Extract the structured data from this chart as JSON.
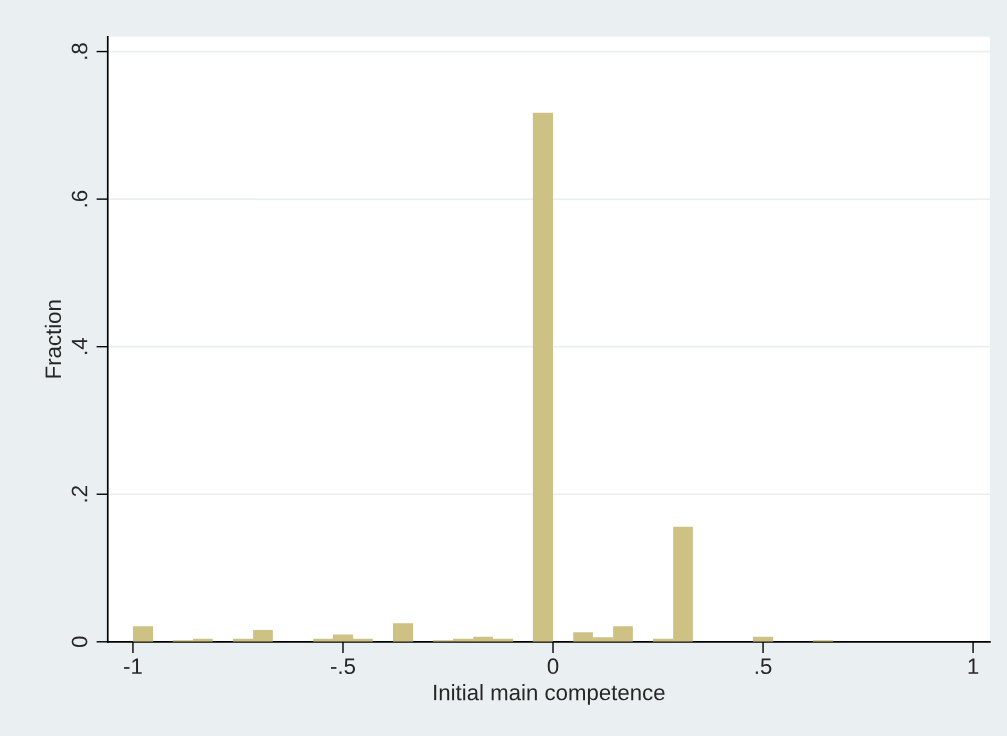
{
  "chart_data": {
    "type": "histogram",
    "xlabel": "Initial main competence",
    "ylabel": "Fraction",
    "bins": [
      -1,
      -0.952,
      -0.905,
      -0.857,
      -0.81,
      -0.762,
      -0.714,
      -0.667,
      -0.619,
      -0.571,
      -0.524,
      -0.476,
      -0.429,
      -0.381,
      -0.333,
      -0.286,
      -0.238,
      -0.19,
      -0.143,
      -0.095,
      -0.048,
      0,
      0.048,
      0.095,
      0.143,
      0.19,
      0.238,
      0.286,
      0.333,
      0.381,
      0.429,
      0.476,
      0.524,
      0.571,
      0.619,
      0.667
    ],
    "values": [
      0.021,
      0,
      0.002,
      0.004,
      0,
      0.004,
      0.016,
      0,
      0,
      0.004,
      0.01,
      0.004,
      0,
      0.025,
      0,
      0.002,
      0.004,
      0.007,
      0.004,
      0,
      0.717,
      0,
      0.013,
      0.006,
      0.021,
      0,
      0.004,
      0.156,
      0,
      0,
      0,
      0.007,
      0,
      0,
      0.002
    ],
    "color": "#cdc283",
    "xlim": [
      -1.06,
      1.04
    ],
    "xticks": [
      {
        "value": -1,
        "label": "-1"
      },
      {
        "value": -0.5,
        "label": "-.5"
      },
      0,
      {
        "value": 0.5,
        "label": ".5"
      },
      1
    ],
    "ylim": [
      0,
      0.82
    ],
    "yticks": [
      0,
      {
        "value": 0.2,
        "label": ".2"
      },
      {
        "value": 0.4,
        "label": ".4"
      },
      {
        "value": 0.6,
        "label": ".6"
      },
      {
        "value": 0.8,
        "label": ".8"
      }
    ],
    "grid": "y",
    "legend": false
  }
}
